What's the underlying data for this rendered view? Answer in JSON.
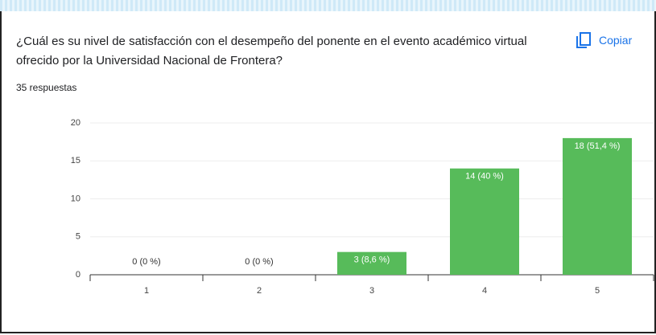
{
  "title": "¿Cuál es su nivel de satisfacción con el desempeño del ponente en el evento académico virtual ofrecido por la Universidad Nacional de Frontera?",
  "copy_button": "Copiar",
  "chart_data": {
    "type": "bar",
    "subtitle": "35 respuestas",
    "categories": [
      "1",
      "2",
      "3",
      "4",
      "5"
    ],
    "values": [
      0,
      0,
      3,
      14,
      18
    ],
    "value_labels": [
      "0 (0 %)",
      "0 (0 %)",
      "3 (8,6 %)",
      "14 (40 %)",
      "18 (51,4 %)"
    ],
    "color": "#57bb5a",
    "ylim": [
      0,
      20
    ],
    "yticks": [
      0,
      5,
      10,
      15,
      20
    ],
    "grid": true
  }
}
